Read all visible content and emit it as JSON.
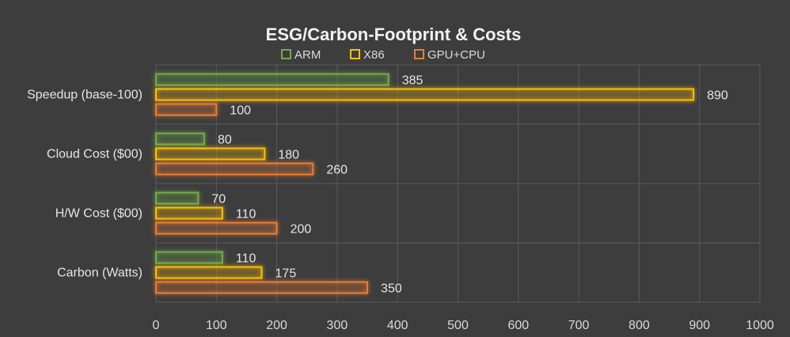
{
  "chart_data": {
    "type": "bar",
    "orientation": "horizontal",
    "title": "ESG/Carbon-Footprint & Costs",
    "categories": [
      "Speedup (base-100)",
      "Cloud Cost ($00)",
      "H/W Cost ($00)",
      "Carbon (Watts)"
    ],
    "series": [
      {
        "name": "ARM",
        "color": "#70ad47",
        "values": [
          385,
          80,
          70,
          110
        ]
      },
      {
        "name": "X86",
        "color": "#ffc000",
        "values": [
          890,
          180,
          110,
          175
        ]
      },
      {
        "name": "GPU+CPU",
        "color": "#ed7d31",
        "values": [
          100,
          260,
          200,
          350
        ]
      }
    ],
    "xlim": [
      0,
      1000
    ],
    "xticks": [
      0,
      100,
      200,
      300,
      400,
      500,
      600,
      700,
      800,
      900,
      1000
    ],
    "grid": true,
    "legend_position": "top",
    "background": "#3d3d3d"
  }
}
